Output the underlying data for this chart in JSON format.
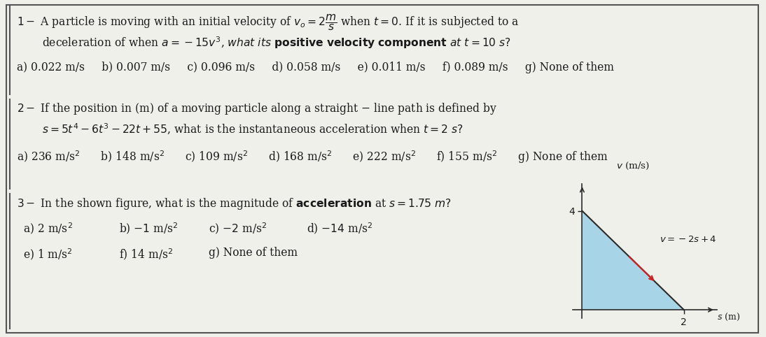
{
  "bg_color": "#f0f0eb",
  "border_color": "#555555",
  "text_color": "#1a1a1a",
  "fig_width": 10.94,
  "fig_height": 4.82,
  "graph_triangle_fill": "#a8d4e8",
  "graph_line_color": "#2a2a2a",
  "graph_arrow_color": "#cc2222"
}
